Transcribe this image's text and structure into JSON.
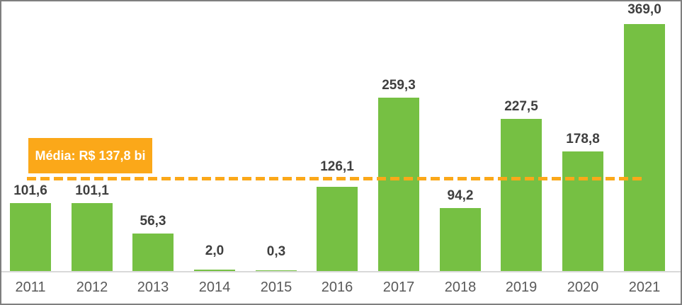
{
  "window": {
    "background": "#FFFFFF",
    "border_color": "#7F7F7F"
  },
  "chart_data": {
    "type": "bar",
    "title": "",
    "xlabel": "",
    "ylabel": "",
    "categories": [
      "2011",
      "2012",
      "2013",
      "2014",
      "2015",
      "2016",
      "2017",
      "2018",
      "2019",
      "2020",
      "2021"
    ],
    "values": [
      101.6,
      101.1,
      56.3,
      2.0,
      0.3,
      126.1,
      259.3,
      94.2,
      227.5,
      178.8,
      369.0
    ],
    "value_labels": [
      "101,6",
      "101,1",
      "56,3",
      "2,0",
      "0,3",
      "126,1",
      "259,3",
      "94,2",
      "227,5",
      "178,8",
      "369,0"
    ],
    "average_value": 137.8,
    "average_label": "Média: R$ 137,8 bi",
    "ylim": [
      0,
      405
    ],
    "grid": false,
    "legend_position": "none",
    "decimal_separator": ",",
    "colors": {
      "bar": "#76C043",
      "average_line": "#FBA819",
      "average_badge_bg": "#FBA819",
      "average_badge_text": "#FFFFFF",
      "value_label": "#3F3F3F",
      "tick_label": "#595959",
      "axis_line": "#D9D9D9",
      "frame_border": "#7F7F7F"
    }
  }
}
